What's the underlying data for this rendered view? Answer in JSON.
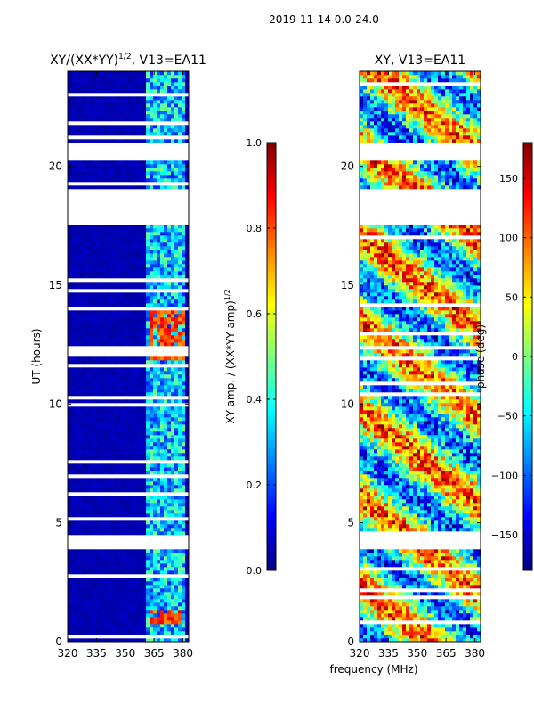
{
  "figure": {
    "suptitle": "2019-11-14 0.0-24.0"
  },
  "colors": {
    "jet": [
      "#00007f",
      "#0000ff",
      "#007fff",
      "#00ffff",
      "#7fff7f",
      "#ffff00",
      "#ff7f00",
      "#ff0000",
      "#7f0000"
    ],
    "frame": "#000000",
    "gap": "#ffffff"
  },
  "chart_data": [
    {
      "id": "amp",
      "type": "heatmap",
      "title_main": "XY/(XX*YY)",
      "title_sup": "1/2",
      "title_tail": ", V13=EA11",
      "xlabel": "",
      "ylabel": "UT (hours)",
      "xlim": [
        320,
        383
      ],
      "ylim": [
        0,
        24
      ],
      "xticks": [
        320,
        335,
        350,
        365,
        380
      ],
      "yticks": [
        0,
        5,
        10,
        15,
        20
      ],
      "rfi_band_mhz": [
        361,
        382
      ],
      "hot_band_mhz": [
        363,
        381
      ],
      "hot_hours": [
        [
          0.8,
          1.3
        ],
        [
          11.8,
          14.0
        ]
      ],
      "data_gaps_hours": [
        [
          17.5,
          19.0
        ],
        [
          20.2,
          21.0
        ],
        [
          3.9,
          4.5
        ]
      ],
      "colorbar": {
        "label_main": "XY amp. / (XX*YY amp)",
        "label_sup": "1/2",
        "range": [
          0.0,
          1.0
        ],
        "ticks": [
          "0.0",
          "0.2",
          "0.4",
          "0.6",
          "0.8",
          "1.0"
        ]
      }
    },
    {
      "id": "phase",
      "type": "heatmap",
      "title_main": "XY, V13=EA11",
      "title_sup": "",
      "title_tail": "",
      "xlabel": "frequency (MHz)",
      "ylabel": "",
      "xlim": [
        320,
        383
      ],
      "ylim": [
        0,
        24
      ],
      "xticks": [
        320,
        335,
        350,
        365,
        380
      ],
      "yticks": [
        0,
        5,
        10,
        15,
        20
      ],
      "data_gaps_hours": [
        [
          17.5,
          19.0
        ],
        [
          20.2,
          21.0
        ],
        [
          3.9,
          4.5
        ]
      ],
      "colorbar": {
        "label": "phase (deg)",
        "range": [
          -180,
          180
        ],
        "ticks": [
          "−150",
          "−100",
          "−50",
          "0",
          "50",
          "100",
          "150"
        ]
      }
    }
  ]
}
